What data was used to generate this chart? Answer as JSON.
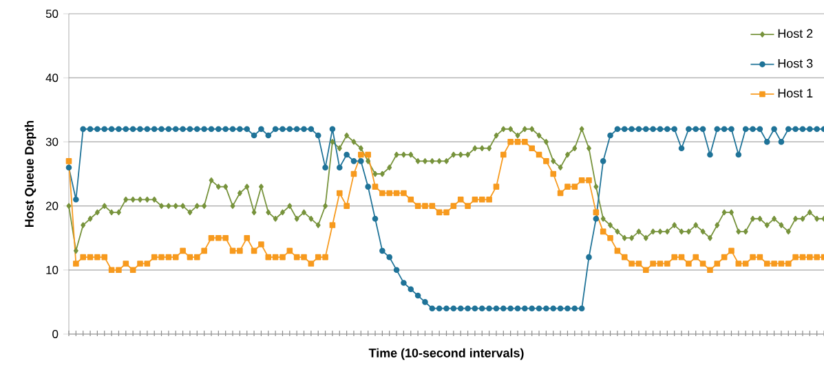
{
  "chart_data": {
    "type": "line",
    "xlabel": "Time (10-second intervals)",
    "ylabel": "Host Queue Depth",
    "categories": [
      null,
      null,
      null,
      null,
      null,
      null,
      null,
      null,
      null,
      null,
      null,
      null,
      null,
      null,
      null,
      null,
      null,
      null,
      null,
      null,
      null,
      null,
      null,
      null,
      null,
      null,
      null,
      null,
      null,
      null,
      null,
      null,
      null,
      null,
      null,
      null,
      null,
      null,
      null,
      null,
      null,
      null,
      null,
      null,
      null,
      null,
      null,
      null,
      null,
      null,
      null,
      null,
      null,
      null,
      null,
      null,
      null,
      null,
      null,
      null,
      null,
      null,
      null,
      null,
      null,
      null,
      null,
      null,
      null,
      null,
      null,
      null,
      null,
      null,
      null,
      null,
      null,
      null,
      null,
      null,
      null,
      null,
      null,
      null,
      null,
      null,
      null,
      null,
      null,
      null,
      null,
      null,
      null,
      null,
      null,
      null,
      null,
      null,
      null,
      null,
      null,
      null,
      null,
      null,
      null,
      null,
      null
    ],
    "series": [
      {
        "name": "Host 2",
        "color": "#77933c",
        "marker": "diamond",
        "values": [
          20,
          13,
          17,
          18,
          19,
          20,
          19,
          19,
          21,
          21,
          21,
          21,
          21,
          20,
          20,
          20,
          20,
          19,
          20,
          20,
          24,
          23,
          23,
          20,
          22,
          23,
          19,
          23,
          19,
          18,
          19,
          20,
          18,
          19,
          18,
          17,
          20,
          30,
          29,
          31,
          30,
          29,
          27,
          25,
          25,
          26,
          28,
          28,
          28,
          27,
          27,
          27,
          27,
          27,
          28,
          28,
          28,
          29,
          29,
          29,
          31,
          32,
          32,
          31,
          32,
          32,
          31,
          30,
          27,
          26,
          28,
          29,
          32,
          29,
          23,
          18,
          17,
          16,
          15,
          15,
          16,
          15,
          16,
          16,
          16,
          17,
          16,
          16,
          17,
          16,
          15,
          17,
          19,
          19,
          16,
          16,
          18,
          18,
          17,
          18,
          17,
          16,
          18,
          18,
          19,
          18,
          18
        ]
      },
      {
        "name": "Host 3",
        "color": "#1f7398",
        "marker": "circle",
        "values": [
          26,
          21,
          32,
          32,
          32,
          32,
          32,
          32,
          32,
          32,
          32,
          32,
          32,
          32,
          32,
          32,
          32,
          32,
          32,
          32,
          32,
          32,
          32,
          32,
          32,
          32,
          31,
          32,
          31,
          32,
          32,
          32,
          32,
          32,
          32,
          31,
          26,
          32,
          26,
          28,
          27,
          27,
          23,
          18,
          13,
          12,
          10,
          8,
          7,
          6,
          5,
          4,
          4,
          4,
          4,
          4,
          4,
          4,
          4,
          4,
          4,
          4,
          4,
          4,
          4,
          4,
          4,
          4,
          4,
          4,
          4,
          4,
          4,
          12,
          18,
          27,
          31,
          32,
          32,
          32,
          32,
          32,
          32,
          32,
          32,
          32,
          29,
          32,
          32,
          32,
          28,
          32,
          32,
          32,
          28,
          32,
          32,
          32,
          30,
          32,
          30,
          32,
          32,
          32,
          32,
          32,
          32
        ]
      },
      {
        "name": "Host 1",
        "color": "#f79a1e",
        "marker": "square",
        "values": [
          27,
          11,
          12,
          12,
          12,
          12,
          10,
          10,
          11,
          10,
          11,
          11,
          12,
          12,
          12,
          12,
          13,
          12,
          12,
          13,
          15,
          15,
          15,
          13,
          13,
          15,
          13,
          14,
          12,
          12,
          12,
          13,
          12,
          12,
          11,
          12,
          12,
          17,
          22,
          20,
          25,
          28,
          28,
          23,
          22,
          22,
          22,
          22,
          21,
          20,
          20,
          20,
          19,
          19,
          20,
          21,
          20,
          21,
          21,
          21,
          23,
          28,
          30,
          30,
          30,
          29,
          28,
          27,
          25,
          22,
          23,
          23,
          24,
          24,
          19,
          16,
          15,
          13,
          12,
          11,
          11,
          10,
          11,
          11,
          11,
          12,
          12,
          11,
          12,
          11,
          10,
          11,
          12,
          13,
          11,
          11,
          12,
          12,
          11,
          11,
          11,
          11,
          12,
          12,
          12,
          12,
          12
        ]
      }
    ],
    "ylim": [
      0,
      50
    ],
    "yticks": [
      0,
      10,
      20,
      30,
      40,
      50
    ],
    "grid": "y",
    "legend": "top right",
    "tick_labels": "y"
  }
}
